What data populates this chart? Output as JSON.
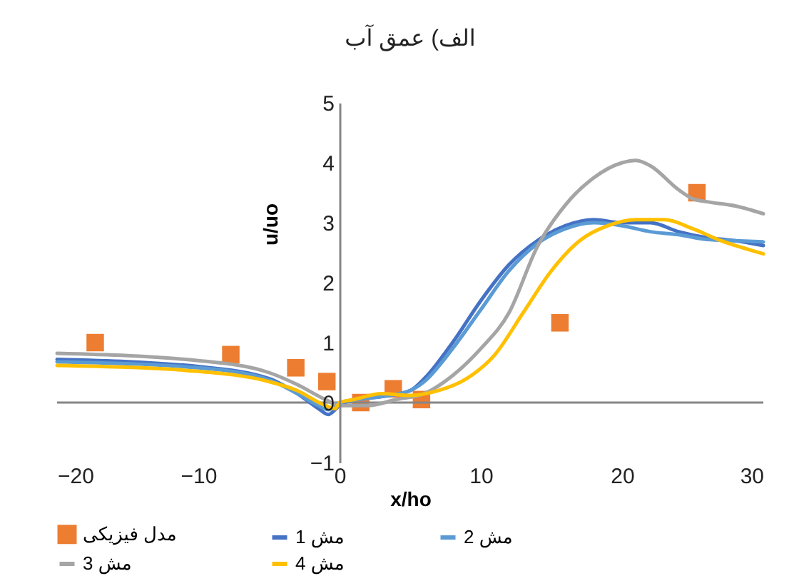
{
  "chart_data": {
    "type": "line",
    "title": "الف) عمق آب",
    "xlabel": "x/ho",
    "ylabel": "u/uo",
    "xlim": [
      -20,
      30
    ],
    "ylim": [
      -1,
      5
    ],
    "xticks": [
      -20,
      -10,
      0,
      10,
      20,
      30
    ],
    "yticks": [
      -1,
      0,
      1,
      2,
      3,
      4,
      5
    ],
    "legend": "bottom",
    "grid": false,
    "ref_lines": [
      {
        "axis": "y",
        "value": 0,
        "color": "#868686"
      }
    ],
    "series": [
      {
        "name": "مدل فیزیکی",
        "type": "scatter",
        "marker": "square",
        "color": "#ed7d31",
        "x": [
          -17.3,
          -7.7,
          -3.1,
          -0.9,
          1.5,
          3.8,
          5.8,
          15.6,
          25.3
        ],
        "values": [
          1.0,
          0.8,
          0.58,
          0.35,
          0.0,
          0.23,
          0.05,
          1.33,
          3.5
        ]
      },
      {
        "name": "مش 1",
        "type": "line",
        "marker": "none",
        "color": "#4472c4",
        "x": [
          -20,
          -10,
          -5,
          -3,
          -1.5,
          -0.8,
          0,
          1,
          3,
          5,
          6,
          8,
          10,
          12,
          14,
          16,
          18,
          20,
          22,
          24,
          26,
          28,
          30
        ],
        "values": [
          0.72,
          0.6,
          0.4,
          0.15,
          -0.1,
          -0.2,
          -0.05,
          0.05,
          0.1,
          0.2,
          0.4,
          1.0,
          1.7,
          2.3,
          2.7,
          2.95,
          3.05,
          3.0,
          3.0,
          2.85,
          2.75,
          2.7,
          2.62
        ]
      },
      {
        "name": "مش 2",
        "type": "line",
        "marker": "none",
        "color": "#5b9bd5",
        "x": [
          -20,
          -10,
          -5,
          -3,
          -1.5,
          -0.8,
          0,
          3,
          5,
          6,
          8,
          10,
          12,
          14,
          16,
          18,
          20,
          22,
          24,
          26,
          28,
          30
        ],
        "values": [
          0.68,
          0.58,
          0.38,
          0.15,
          -0.05,
          -0.12,
          0,
          0.1,
          0.2,
          0.35,
          0.9,
          1.55,
          2.2,
          2.65,
          2.9,
          3.0,
          2.95,
          2.85,
          2.8,
          2.72,
          2.7,
          2.68
        ]
      },
      {
        "name": "مش 3",
        "type": "line",
        "marker": "none",
        "color": "#a5a5a5",
        "x": [
          -20,
          -10,
          -5,
          -3,
          -1,
          0,
          2,
          4,
          6,
          8,
          10,
          12,
          14,
          16,
          18,
          20,
          21,
          22,
          24,
          25,
          26,
          28,
          30
        ],
        "values": [
          0.82,
          0.7,
          0.5,
          0.3,
          0.05,
          -0.05,
          -0.05,
          0.05,
          0.15,
          0.45,
          0.9,
          1.5,
          2.6,
          3.3,
          3.75,
          4.0,
          4.04,
          3.95,
          3.55,
          3.4,
          3.35,
          3.28,
          3.15
        ]
      },
      {
        "name": "مش 4",
        "type": "line",
        "marker": "none",
        "color": "#ffc000",
        "x": [
          -20,
          -10,
          -5,
          -3,
          -1,
          -0.3,
          0,
          1,
          3,
          5,
          7,
          9,
          11,
          13,
          15,
          17,
          19,
          21,
          23,
          25,
          27,
          29,
          30
        ],
        "values": [
          0.62,
          0.52,
          0.35,
          0.2,
          -0.05,
          -0.1,
          0,
          0.05,
          0.15,
          0.12,
          0.2,
          0.4,
          0.8,
          1.5,
          2.2,
          2.7,
          2.95,
          3.05,
          3.05,
          2.9,
          2.7,
          2.55,
          2.48
        ]
      }
    ]
  }
}
